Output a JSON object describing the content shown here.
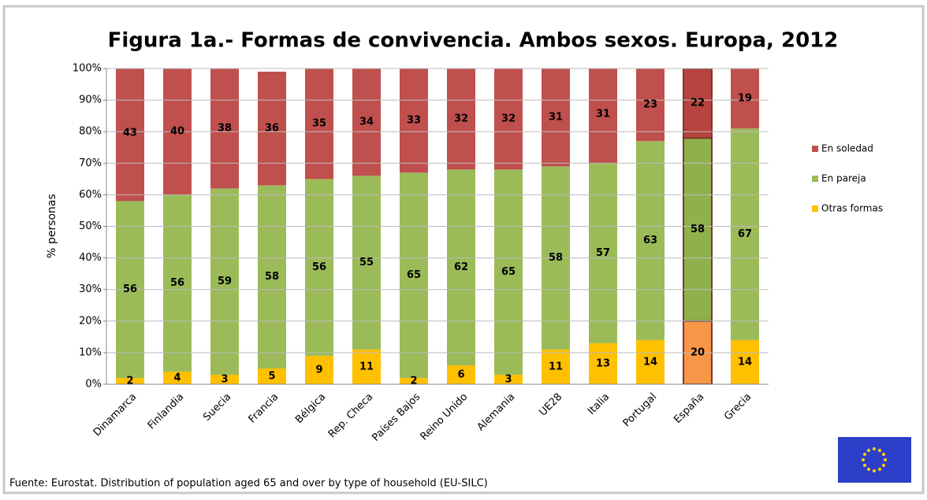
{
  "chart_data": {
    "type": "stacked_bar",
    "title": "Figura 1a.- Formas de convivencia. Ambos sexos. Europa, 2012",
    "y_label": "% personas",
    "source": "Fuente: Eurostat.  Distribution of population aged 65 and over by type of household (EU-SILC)",
    "categories": [
      "Dinamarca",
      "Finlandia",
      "Suecia",
      "Francia",
      "Bélgica",
      "Rep. Checa",
      "Países Bajos",
      "Reino Unido",
      "Alemania",
      "UE28",
      "Italia",
      "Portugal",
      "España",
      "Grecia"
    ],
    "series": [
      {
        "name": "Otras formas",
        "color": "#ffc000",
        "highlight_color": "#f79646",
        "values": [
          2,
          4,
          3,
          5,
          9,
          11,
          2,
          6,
          3,
          11,
          13,
          14,
          20,
          14
        ]
      },
      {
        "name": "En pareja",
        "color": "#9bbb59",
        "highlight_color": "#8fb04c",
        "values": [
          56,
          56,
          59,
          58,
          56,
          55,
          65,
          62,
          65,
          58,
          57,
          63,
          58,
          67
        ]
      },
      {
        "name": "En soledad",
        "color": "#c0504d",
        "highlight_color": "#b8433f",
        "values": [
          43,
          40,
          38,
          36,
          35,
          34,
          33,
          32,
          32,
          31,
          31,
          23,
          22,
          19
        ]
      }
    ],
    "highlight_index": 12,
    "ylim": [
      0,
      100
    ],
    "yticks": [
      {
        "value": 0,
        "label": "0%"
      },
      {
        "value": 10,
        "label": "10%"
      },
      {
        "value": 20,
        "label": "20%"
      },
      {
        "value": 30,
        "label": "30%"
      },
      {
        "value": 40,
        "label": "40%"
      },
      {
        "value": 50,
        "label": "50%"
      },
      {
        "value": 60,
        "label": "60%"
      },
      {
        "value": 70,
        "label": "70%"
      },
      {
        "value": 80,
        "label": "80%"
      },
      {
        "value": 90,
        "label": "90%"
      },
      {
        "value": 100,
        "label": "100%"
      }
    ],
    "grid": true,
    "legend": "right"
  }
}
